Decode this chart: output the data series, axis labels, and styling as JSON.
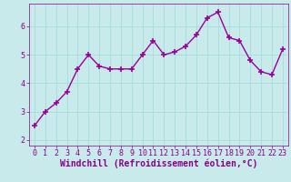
{
  "x": [
    0,
    1,
    2,
    3,
    4,
    5,
    6,
    7,
    8,
    9,
    10,
    11,
    12,
    13,
    14,
    15,
    16,
    17,
    18,
    19,
    20,
    21,
    22,
    23
  ],
  "y": [
    2.5,
    3.0,
    3.3,
    3.7,
    4.5,
    5.0,
    4.6,
    4.5,
    4.5,
    4.5,
    5.0,
    5.5,
    5.0,
    5.1,
    5.3,
    5.7,
    6.3,
    6.5,
    5.6,
    5.5,
    4.8,
    4.4,
    4.3,
    5.2
  ],
  "line_color": "#990099",
  "marker": "+",
  "marker_size": 4,
  "bg_color": "#c8eaea",
  "plot_bg_color": "#c8eaea",
  "grid_color": "#aadddd",
  "xlabel": "Windchill (Refroidissement éolien,°C)",
  "xlabel_color": "#880088",
  "tick_color": "#880088",
  "ylim": [
    1.8,
    6.8
  ],
  "xlim": [
    -0.5,
    23.5
  ],
  "yticks": [
    2,
    3,
    4,
    5,
    6
  ],
  "xticks": [
    0,
    1,
    2,
    3,
    4,
    5,
    6,
    7,
    8,
    9,
    10,
    11,
    12,
    13,
    14,
    15,
    16,
    17,
    18,
    19,
    20,
    21,
    22,
    23
  ],
  "tick_fontsize": 6,
  "xlabel_fontsize": 7,
  "linewidth": 1.0,
  "marker_edge_width": 1.2
}
